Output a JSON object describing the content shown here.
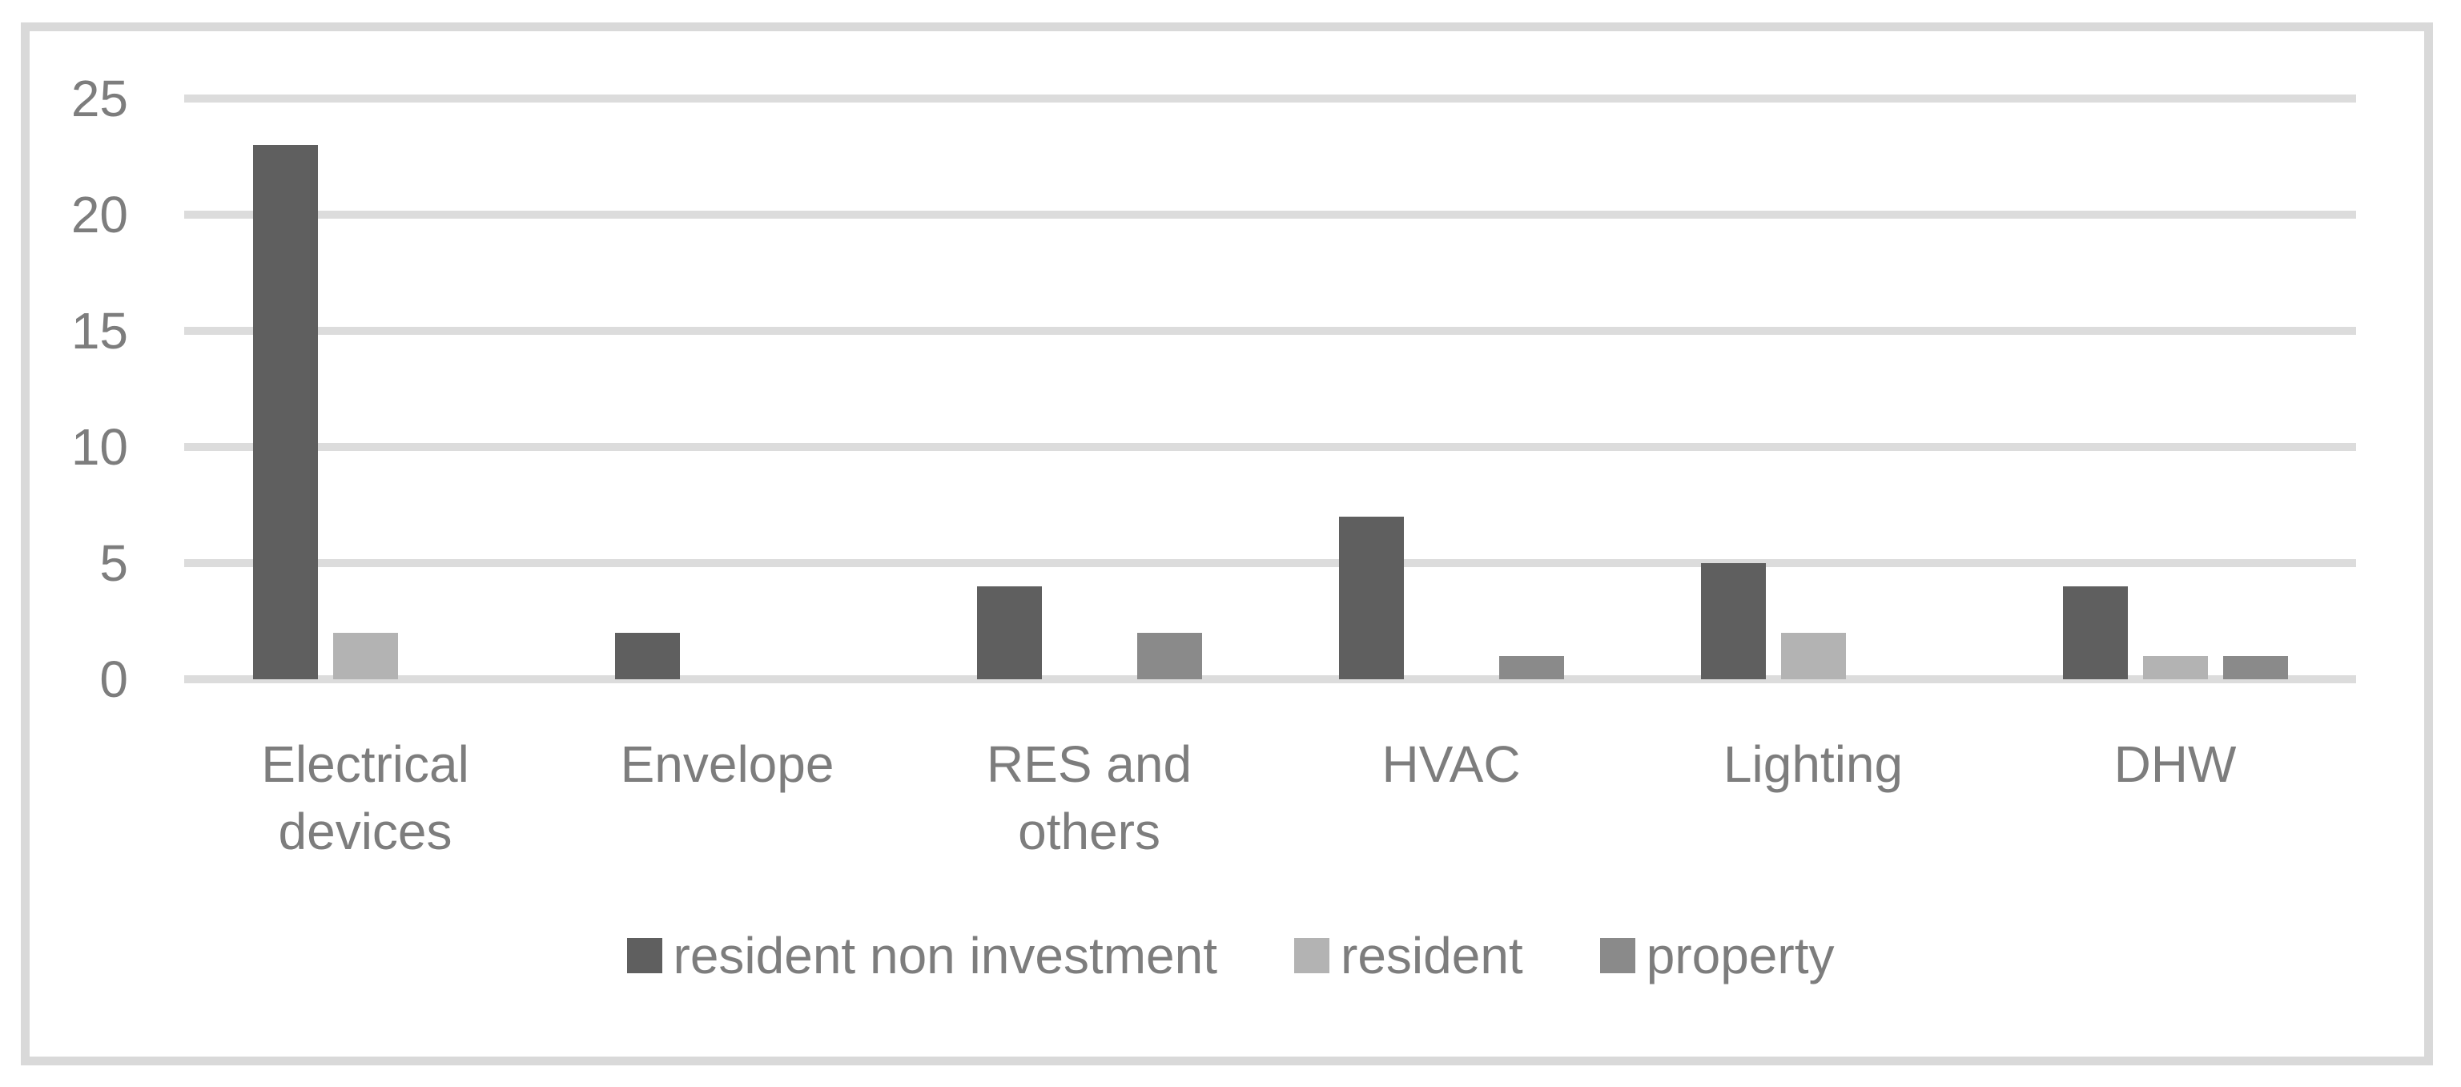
{
  "chart_data": {
    "type": "bar",
    "title": "",
    "xlabel": "",
    "ylabel": "",
    "categories": [
      "Electrical devices",
      "Envelope",
      "RES and others",
      "HVAC",
      "Lighting",
      "DHW"
    ],
    "series": [
      {
        "name": "resident non investment",
        "color": "#5f5f5f",
        "values": [
          23,
          2,
          4,
          7,
          5,
          4
        ]
      },
      {
        "name": "resident",
        "color": "#b3b3b3",
        "values": [
          2,
          0,
          0,
          0,
          2,
          1
        ]
      },
      {
        "name": "property",
        "color": "#8a8a8a",
        "values": [
          0,
          0,
          2,
          1,
          0,
          1
        ]
      }
    ],
    "ylim": [
      0,
      25
    ],
    "yticks": [
      0,
      5,
      10,
      15,
      20,
      25
    ],
    "grid": true,
    "gridline_color": "#dcdcdc",
    "frame_color": "#d9d9d9",
    "text_color": "#7d7d7d",
    "legend_position": "bottom",
    "legend_labels": [
      "resident non investment",
      "resident",
      "property"
    ]
  }
}
